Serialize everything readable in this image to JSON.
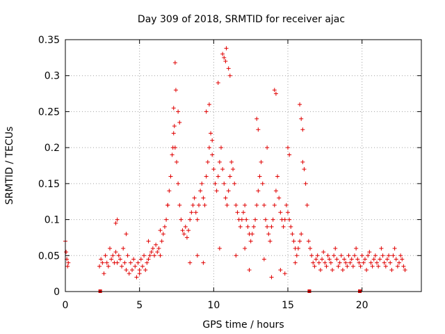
{
  "chart_data": {
    "type": "scatter",
    "title": "Day 309 of 2018, SRMTID for receiver ajac",
    "xlabel": "GPS time / hours",
    "ylabel": "SRMTID / TECUs",
    "xlim": [
      0,
      24
    ],
    "ylim": [
      0,
      0.35
    ],
    "xticks": [
      0,
      5,
      10,
      15,
      20
    ],
    "xtick_labels": [
      "0",
      "5",
      "10",
      "15",
      "20"
    ],
    "yticks": [
      0,
      0.05,
      0.1,
      0.15,
      0.2,
      0.25,
      0.3,
      0.35
    ],
    "ytick_labels": [
      "0",
      "0.05",
      "0.1",
      "0.15",
      "0.2",
      "0.25",
      "0.3",
      "0.35"
    ],
    "grid": true,
    "marker": "plus",
    "color": "#e00000",
    "series": [
      {
        "name": "SRMTID",
        "x": [
          0.0,
          0.05,
          0.1,
          0.15,
          0.2,
          2.3,
          2.4,
          2.5,
          2.6,
          2.7,
          2.8,
          2.9,
          3.0,
          3.1,
          3.2,
          3.3,
          3.4,
          3.5,
          3.6,
          3.7,
          3.8,
          3.9,
          4.0,
          4.1,
          4.2,
          4.3,
          4.4,
          4.5,
          4.6,
          4.7,
          4.8,
          4.9,
          5.0,
          5.1,
          5.2,
          5.3,
          5.4,
          5.5,
          5.6,
          5.7,
          5.8,
          5.9,
          6.0,
          6.1,
          6.2,
          6.3,
          6.4,
          6.5,
          6.6,
          6.7,
          6.8,
          6.9,
          7.0,
          7.1,
          7.2,
          7.25,
          7.3,
          7.35,
          7.4,
          7.5,
          7.6,
          7.7,
          7.8,
          7.9,
          8.0,
          8.1,
          8.2,
          8.3,
          8.4,
          8.5,
          8.6,
          8.7,
          8.8,
          8.9,
          9.0,
          9.1,
          9.2,
          9.3,
          9.4,
          9.5,
          9.6,
          9.7,
          9.8,
          9.9,
          10.0,
          10.1,
          10.2,
          10.3,
          10.4,
          10.5,
          10.6,
          10.7,
          10.8,
          10.9,
          11.0,
          11.1,
          11.2,
          11.3,
          11.4,
          11.5,
          11.6,
          11.7,
          11.8,
          11.9,
          12.0,
          12.1,
          12.2,
          12.3,
          12.4,
          12.5,
          12.6,
          12.7,
          12.8,
          12.9,
          13.0,
          13.1,
          13.2,
          13.3,
          13.4,
          13.5,
          13.6,
          13.7,
          13.8,
          13.9,
          14.0,
          14.1,
          14.2,
          14.3,
          14.4,
          14.5,
          14.6,
          14.7,
          14.8,
          14.9,
          15.0,
          15.1,
          15.2,
          15.3,
          15.4,
          15.5,
          15.6,
          15.7,
          15.8,
          15.9,
          16.0,
          16.1,
          16.2,
          16.3,
          16.4,
          16.5,
          16.6,
          16.7,
          16.8,
          16.9,
          17.0,
          17.1,
          17.2,
          17.3,
          17.4,
          17.5,
          17.6,
          17.7,
          17.8,
          17.9,
          18.0,
          18.1,
          18.2,
          18.3,
          18.4,
          18.5,
          18.6,
          18.7,
          18.8,
          18.9,
          19.0,
          19.1,
          19.2,
          19.3,
          19.4,
          19.5,
          19.6,
          19.7,
          19.8,
          19.9,
          20.0,
          20.1,
          20.2,
          20.3,
          20.4,
          20.5,
          20.6,
          20.7,
          20.8,
          20.9,
          21.0,
          21.1,
          21.2,
          21.3,
          21.4,
          21.5,
          21.6,
          21.7,
          21.8,
          21.9,
          22.0,
          22.1,
          22.2,
          22.3,
          22.4,
          22.5,
          22.6,
          22.7,
          22.8,
          22.9,
          3.4,
          3.5,
          4.1,
          5.0,
          5.6,
          6.4,
          6.9,
          7.3,
          7.4,
          7.45,
          7.6,
          7.7,
          9.5,
          9.7,
          9.9,
          10.3,
          10.6,
          10.7,
          10.8,
          10.85,
          11.0,
          11.1,
          12.9,
          13.0,
          13.6,
          14.1,
          14.2,
          15.0,
          15.1,
          15.8,
          15.9,
          16.0,
          9.3,
          10.4,
          11.5,
          12.4,
          13.9,
          14.8,
          8.4,
          8.9,
          12.1,
          13.4,
          14.5,
          15.5
        ],
        "y": [
          0.07,
          0.055,
          0.045,
          0.035,
          0.04,
          0.035,
          0.045,
          0.04,
          0.025,
          0.05,
          0.04,
          0.035,
          0.06,
          0.045,
          0.05,
          0.04,
          0.055,
          0.04,
          0.05,
          0.045,
          0.035,
          0.06,
          0.04,
          0.03,
          0.05,
          0.025,
          0.04,
          0.03,
          0.045,
          0.035,
          0.02,
          0.04,
          0.03,
          0.045,
          0.035,
          0.05,
          0.03,
          0.04,
          0.045,
          0.05,
          0.055,
          0.06,
          0.05,
          0.065,
          0.055,
          0.06,
          0.05,
          0.07,
          0.08,
          0.09,
          0.1,
          0.12,
          0.14,
          0.16,
          0.19,
          0.2,
          0.22,
          0.23,
          0.2,
          0.18,
          0.15,
          0.12,
          0.1,
          0.085,
          0.08,
          0.09,
          0.075,
          0.085,
          0.1,
          0.11,
          0.12,
          0.13,
          0.11,
          0.1,
          0.12,
          0.14,
          0.15,
          0.13,
          0.12,
          0.16,
          0.18,
          0.2,
          0.22,
          0.19,
          0.17,
          0.15,
          0.14,
          0.16,
          0.18,
          0.2,
          0.17,
          0.15,
          0.13,
          0.12,
          0.14,
          0.16,
          0.18,
          0.17,
          0.15,
          0.12,
          0.11,
          0.1,
          0.09,
          0.1,
          0.11,
          0.12,
          0.1,
          0.09,
          0.08,
          0.07,
          0.08,
          0.09,
          0.1,
          0.12,
          0.14,
          0.16,
          0.18,
          0.15,
          0.12,
          0.1,
          0.09,
          0.08,
          0.07,
          0.09,
          0.1,
          0.12,
          0.14,
          0.16,
          0.13,
          0.11,
          0.1,
          0.09,
          0.1,
          0.12,
          0.11,
          0.1,
          0.09,
          0.08,
          0.07,
          0.06,
          0.05,
          0.06,
          0.07,
          0.08,
          0.18,
          0.17,
          0.15,
          0.12,
          0.07,
          0.06,
          0.05,
          0.04,
          0.035,
          0.045,
          0.05,
          0.04,
          0.03,
          0.045,
          0.055,
          0.04,
          0.035,
          0.05,
          0.045,
          0.04,
          0.03,
          0.05,
          0.06,
          0.045,
          0.035,
          0.04,
          0.05,
          0.03,
          0.045,
          0.04,
          0.035,
          0.05,
          0.04,
          0.045,
          0.035,
          0.05,
          0.06,
          0.045,
          0.04,
          0.035,
          0.05,
          0.04,
          0.045,
          0.03,
          0.05,
          0.055,
          0.04,
          0.035,
          0.045,
          0.05,
          0.04,
          0.035,
          0.045,
          0.06,
          0.05,
          0.04,
          0.035,
          0.045,
          0.05,
          0.04,
          0.03,
          0.05,
          0.06,
          0.045,
          0.035,
          0.04,
          0.05,
          0.045,
          0.035,
          0.03,
          0.095,
          0.1,
          0.08,
          0.025,
          0.07,
          0.085,
          0.12,
          0.255,
          0.318,
          0.28,
          0.25,
          0.235,
          0.25,
          0.26,
          0.21,
          0.29,
          0.33,
          0.325,
          0.32,
          0.338,
          0.31,
          0.3,
          0.24,
          0.225,
          0.2,
          0.28,
          0.275,
          0.2,
          0.19,
          0.26,
          0.24,
          0.225,
          0.04,
          0.06,
          0.05,
          0.03,
          0.02,
          0.025,
          0.04,
          0.05,
          0.06,
          0.045,
          0.03,
          0.04
        ]
      }
    ],
    "gap_markers_x": [
      2.35,
      16.45,
      19.85
    ]
  }
}
